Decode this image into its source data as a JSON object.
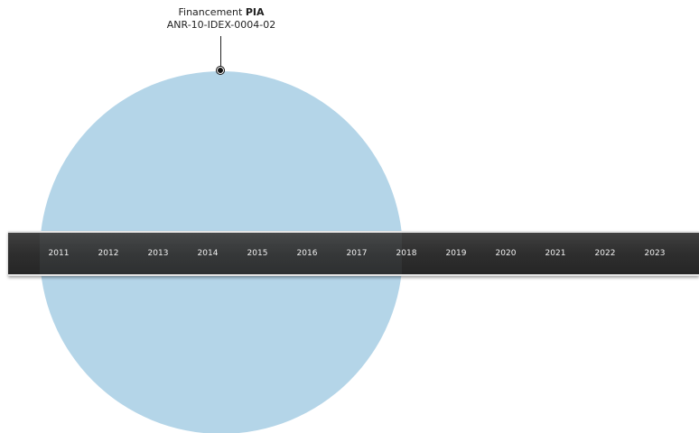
{
  "callout": {
    "prefix": "Financement",
    "strong": "PIA",
    "reference": "ANR-10-IDEX-0004-02"
  },
  "timeline": {
    "years": [
      "2011",
      "2012",
      "2013",
      "2014",
      "2015",
      "2016",
      "2017",
      "2018",
      "2019",
      "2020",
      "2021",
      "2022",
      "2023"
    ]
  },
  "colors": {
    "circle": "#b4d5e8",
    "bar": "#2e2e2e",
    "year_text": "#f0f0f0"
  }
}
